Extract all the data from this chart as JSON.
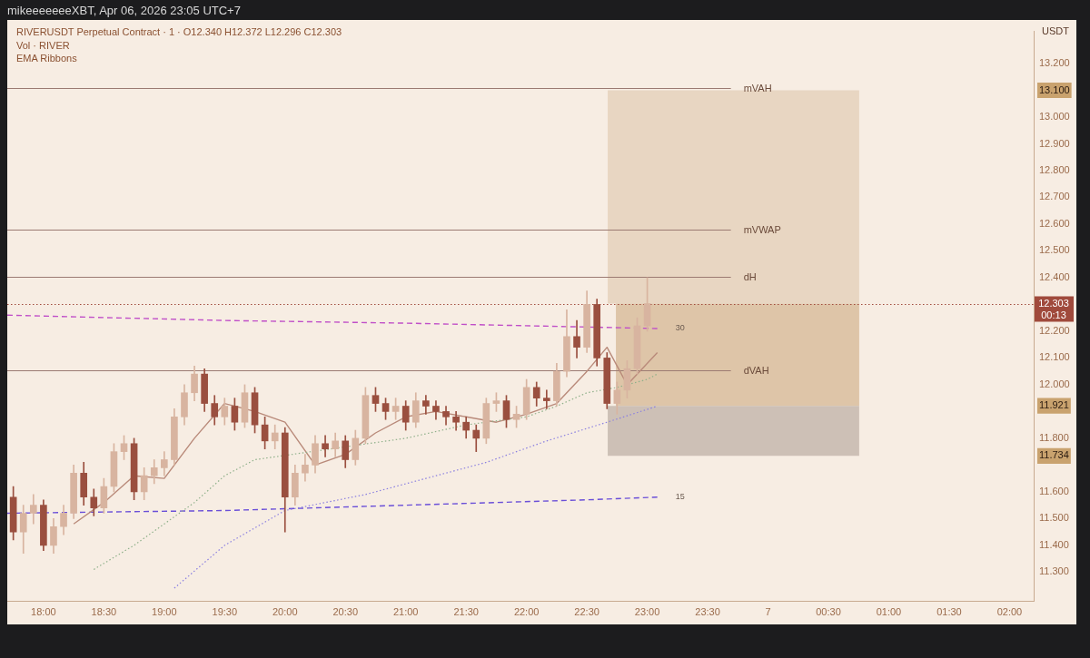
{
  "chart_data": {
    "type": "candlestick",
    "title": "RIVERUSDT Perpetual Contract · 1 · O12.340 H12.372 L12.296 C12.303",
    "subtitle": "mikeeeeeeeXBT, Apr 06, 2026 23:05 UTC+7",
    "ylabel": "USDT",
    "annotations": [
      "Vol · RIVER",
      "EMA Ribbons"
    ],
    "xlim": [
      "2026-04-06T17:42",
      "2026-04-07T02:12"
    ],
    "xticks": [
      {
        "value": "2026-04-06T18:00",
        "label": "18:00"
      },
      {
        "value": "2026-04-06T18:30",
        "label": "18:30"
      },
      {
        "value": "2026-04-06T19:00",
        "label": "19:00"
      },
      {
        "value": "2026-04-06T19:30",
        "label": "19:30"
      },
      {
        "value": "2026-04-06T20:00",
        "label": "20:00"
      },
      {
        "value": "2026-04-06T20:30",
        "label": "20:30"
      },
      {
        "value": "2026-04-06T21:00",
        "label": "21:00"
      },
      {
        "value": "2026-04-06T21:30",
        "label": "21:30"
      },
      {
        "value": "2026-04-06T22:00",
        "label": "22:00"
      },
      {
        "value": "2026-04-06T22:30",
        "label": "22:30"
      },
      {
        "value": "2026-04-06T23:00",
        "label": "23:00"
      },
      {
        "value": "2026-04-06T23:30",
        "label": "23:30"
      },
      {
        "value": "2026-04-07T00:00",
        "label": "7"
      },
      {
        "value": "2026-04-07T00:30",
        "label": "00:30"
      },
      {
        "value": "2026-04-07T01:00",
        "label": "01:00"
      },
      {
        "value": "2026-04-07T01:30",
        "label": "01:30"
      },
      {
        "value": "2026-04-07T02:00",
        "label": "02:00"
      }
    ],
    "ylim": [
      11.19,
      13.32
    ],
    "yticks": [
      {
        "value": 11.3,
        "label": "11.300"
      },
      {
        "value": 11.4,
        "label": "11.400"
      },
      {
        "value": 11.5,
        "label": "11.500"
      },
      {
        "value": 11.6,
        "label": "11.600"
      },
      {
        "value": 11.734,
        "label": "11.734"
      },
      {
        "value": 11.8,
        "label": "11.800"
      },
      {
        "value": 11.921,
        "label": "11.921"
      },
      {
        "value": 12.0,
        "label": "12.000"
      },
      {
        "value": 12.1,
        "label": "12.100"
      },
      {
        "value": 12.2,
        "label": "12.200"
      },
      {
        "value": 12.3,
        "label": null
      },
      {
        "value": 12.4,
        "label": "12.400"
      },
      {
        "value": 12.5,
        "label": "12.500"
      },
      {
        "value": 12.6,
        "label": "12.600"
      },
      {
        "value": 12.7,
        "label": "12.700"
      },
      {
        "value": 12.8,
        "label": "12.800"
      },
      {
        "value": 12.9,
        "label": "12.900"
      },
      {
        "value": 13.0,
        "label": "13.000"
      },
      {
        "value": 13.1,
        "label": "13.100"
      },
      {
        "value": 13.2,
        "label": "13.200"
      }
    ],
    "grid": false,
    "legend": false,
    "marker": "none",
    "ref_lines": [
      {
        "axis": "y",
        "value": 13.109,
        "label": "mVAH",
        "color": "#9b7a72",
        "line_style": "solid"
      },
      {
        "axis": "y",
        "value": 12.58,
        "label": "mVWAP",
        "color": "#9b7a72",
        "line_style": "solid"
      },
      {
        "axis": "y",
        "value": 12.403,
        "label": "dH",
        "color": "#9b7a72",
        "line_style": "solid"
      },
      {
        "axis": "y",
        "value": 12.055,
        "label": "dVAH",
        "color": "#9b7a72",
        "line_style": "solid"
      },
      {
        "axis": "y",
        "value": 12.303,
        "label": "12.303 00:13",
        "color": "#a04a3c",
        "line_style": "dotted"
      }
    ],
    "bands": [
      {
        "axis": "y",
        "from": 13.1,
        "to": 12.303,
        "color": "#e8d6c2"
      },
      {
        "axis": "y",
        "from": 11.921,
        "to": 12.303,
        "color": "#dec5a8"
      },
      {
        "axis": "y",
        "from": 11.734,
        "to": 11.921,
        "color": "#cdc0b6"
      }
    ],
    "series": [
      {
        "type": "line",
        "line_style": "dotted",
        "color": "#8fb08a",
        "x": [
          "2026-04-06T18:25",
          "2026-04-06T18:45",
          "2026-04-06T19:00",
          "2026-04-06T19:15",
          "2026-04-06T19:30",
          "2026-04-06T19:45",
          "2026-04-06T21:00",
          "2026-04-06T21:30",
          "2026-04-06T22:00",
          "2026-04-06T22:15",
          "2026-04-06T22:30",
          "2026-04-06T22:45",
          "2026-04-06T23:00",
          "2026-04-06T23:05"
        ],
        "values": [
          11.31,
          11.4,
          11.48,
          11.56,
          11.66,
          11.72,
          11.8,
          11.85,
          11.88,
          11.92,
          11.97,
          11.99,
          12.02,
          12.04
        ]
      },
      {
        "type": "line",
        "line_style": "dotted",
        "color": "#8a7fe0",
        "x": [
          "2026-04-06T19:05",
          "2026-04-06T19:30",
          "2026-04-06T20:00",
          "2026-04-06T20:40",
          "2026-04-06T21:15",
          "2026-04-06T21:40",
          "2026-04-06T22:10",
          "2026-04-06T22:40",
          "2026-04-06T23:05"
        ],
        "values": [
          11.24,
          11.4,
          11.53,
          11.59,
          11.66,
          11.71,
          11.79,
          11.86,
          11.92
        ]
      },
      {
        "type": "line",
        "line_style": "solid",
        "color": "#b98a7a",
        "x": [
          "2026-04-06T18:15",
          "2026-04-06T18:30",
          "2026-04-06T18:45",
          "2026-04-06T19:00",
          "2026-04-06T19:15",
          "2026-04-06T19:30",
          "2026-04-06T19:45",
          "2026-04-06T20:00",
          "2026-04-06T20:15",
          "2026-04-06T20:30",
          "2026-04-06T20:45",
          "2026-04-06T21:00",
          "2026-04-06T21:15",
          "2026-04-06T21:30",
          "2026-04-06T21:45",
          "2026-04-06T22:00",
          "2026-04-06T22:15",
          "2026-04-06T22:30",
          "2026-04-06T22:40",
          "2026-04-06T22:50",
          "2026-04-06T23:05"
        ],
        "values": [
          11.48,
          11.56,
          11.66,
          11.65,
          11.8,
          11.93,
          11.9,
          11.86,
          11.7,
          11.74,
          11.82,
          11.88,
          11.9,
          11.88,
          11.86,
          11.89,
          11.93,
          12.05,
          12.14,
          12.0,
          12.12
        ]
      },
      {
        "type": "line",
        "name": "30",
        "line_style": "dashed",
        "color": "#c04fc8",
        "x": [
          "2026-04-06T17:42",
          "2026-04-06T19:30",
          "2026-04-06T21:00",
          "2026-04-06T23:05"
        ],
        "values": [
          12.26,
          12.24,
          12.23,
          12.21
        ]
      },
      {
        "type": "line",
        "name": "15",
        "line_style": "dashed",
        "color": "#6a4fd8",
        "x": [
          "2026-04-06T17:42",
          "2026-04-06T19:30",
          "2026-04-06T21:00",
          "2026-04-06T22:30",
          "2026-04-06T23:05"
        ],
        "values": [
          11.52,
          11.53,
          11.55,
          11.57,
          11.58
        ]
      },
      {
        "x": [
          "2026-04-06T17:45",
          "2026-04-06T17:50",
          "2026-04-06T17:55",
          "2026-04-06T18:00",
          "2026-04-06T18:05",
          "2026-04-06T18:10",
          "2026-04-06T18:15",
          "2026-04-06T18:20",
          "2026-04-06T18:25",
          "2026-04-06T18:30",
          "2026-04-06T18:35",
          "2026-04-06T18:40",
          "2026-04-06T18:45",
          "2026-04-06T18:50",
          "2026-04-06T18:55",
          "2026-04-06T19:00",
          "2026-04-06T19:05",
          "2026-04-06T19:10",
          "2026-04-06T19:15",
          "2026-04-06T19:20",
          "2026-04-06T19:25",
          "2026-04-06T19:30",
          "2026-04-06T19:35",
          "2026-04-06T19:40",
          "2026-04-06T19:45",
          "2026-04-06T19:50",
          "2026-04-06T19:55",
          "2026-04-06T20:00",
          "2026-04-06T20:05",
          "2026-04-06T20:10",
          "2026-04-06T20:15",
          "2026-04-06T20:20",
          "2026-04-06T20:25",
          "2026-04-06T20:30",
          "2026-04-06T20:35",
          "2026-04-06T20:40",
          "2026-04-06T20:45",
          "2026-04-06T20:50",
          "2026-04-06T20:55",
          "2026-04-06T21:00",
          "2026-04-06T21:05",
          "2026-04-06T21:10",
          "2026-04-06T21:15",
          "2026-04-06T21:20",
          "2026-04-06T21:25",
          "2026-04-06T21:30",
          "2026-04-06T21:35",
          "2026-04-06T21:40",
          "2026-04-06T21:45",
          "2026-04-06T21:50",
          "2026-04-06T21:55",
          "2026-04-06T22:00",
          "2026-04-06T22:05",
          "2026-04-06T22:10",
          "2026-04-06T22:15",
          "2026-04-06T22:20",
          "2026-04-06T22:25",
          "2026-04-06T22:30",
          "2026-04-06T22:35",
          "2026-04-06T22:40",
          "2026-04-06T22:45",
          "2026-04-06T22:50",
          "2026-04-06T22:55",
          "2026-04-06T23:00"
        ],
        "ohlc": [
          [
            11.58,
            11.62,
            11.42,
            11.45
          ],
          [
            11.45,
            11.55,
            11.37,
            11.52
          ],
          [
            11.52,
            11.59,
            11.48,
            11.55
          ],
          [
            11.55,
            11.57,
            11.38,
            11.4
          ],
          [
            11.4,
            11.5,
            11.37,
            11.47
          ],
          [
            11.47,
            11.55,
            11.44,
            11.52
          ],
          [
            11.52,
            11.7,
            11.5,
            11.67
          ],
          [
            11.67,
            11.71,
            11.55,
            11.58
          ],
          [
            11.58,
            11.61,
            11.51,
            11.54
          ],
          [
            11.54,
            11.65,
            11.52,
            11.62
          ],
          [
            11.62,
            11.78,
            11.6,
            11.75
          ],
          [
            11.75,
            11.81,
            11.72,
            11.78
          ],
          [
            11.78,
            11.8,
            11.57,
            11.6
          ],
          [
            11.6,
            11.69,
            11.57,
            11.66
          ],
          [
            11.66,
            11.72,
            11.63,
            11.69
          ],
          [
            11.69,
            11.75,
            11.66,
            11.72
          ],
          [
            11.72,
            11.91,
            11.7,
            11.88
          ],
          [
            11.88,
            12.0,
            11.85,
            11.97
          ],
          [
            11.97,
            12.07,
            11.94,
            12.04
          ],
          [
            12.04,
            12.06,
            11.9,
            11.93
          ],
          [
            11.93,
            11.96,
            11.85,
            11.88
          ],
          [
            11.88,
            11.95,
            11.85,
            11.92
          ],
          [
            11.92,
            11.95,
            11.83,
            11.86
          ],
          [
            11.86,
            12.0,
            11.84,
            11.97
          ],
          [
            11.97,
            11.99,
            11.82,
            11.85
          ],
          [
            11.85,
            11.88,
            11.76,
            11.79
          ],
          [
            11.79,
            11.85,
            11.76,
            11.82
          ],
          [
            11.82,
            11.84,
            11.45,
            11.58
          ],
          [
            11.58,
            11.7,
            11.55,
            11.67
          ],
          [
            11.67,
            11.74,
            11.64,
            11.7
          ],
          [
            11.7,
            11.81,
            11.67,
            11.78
          ],
          [
            11.78,
            11.81,
            11.73,
            11.76
          ],
          [
            11.76,
            11.82,
            11.73,
            11.79
          ],
          [
            11.79,
            11.81,
            11.69,
            11.72
          ],
          [
            11.72,
            11.83,
            11.7,
            11.8
          ],
          [
            11.8,
            11.99,
            11.78,
            11.96
          ],
          [
            11.96,
            11.99,
            11.9,
            11.93
          ],
          [
            11.93,
            11.95,
            11.87,
            11.9
          ],
          [
            11.9,
            11.95,
            11.87,
            11.92
          ],
          [
            11.92,
            11.94,
            11.83,
            11.86
          ],
          [
            11.86,
            11.97,
            11.84,
            11.94
          ],
          [
            11.94,
            11.96,
            11.89,
            11.92
          ],
          [
            11.92,
            11.94,
            11.87,
            11.9
          ],
          [
            11.9,
            11.92,
            11.85,
            11.88
          ],
          [
            11.88,
            11.9,
            11.83,
            11.86
          ],
          [
            11.86,
            11.88,
            11.8,
            11.83
          ],
          [
            11.83,
            11.85,
            11.75,
            11.8
          ],
          [
            11.8,
            11.95,
            11.78,
            11.93
          ],
          [
            11.93,
            11.97,
            11.9,
            11.94
          ],
          [
            11.94,
            11.96,
            11.84,
            11.87
          ],
          [
            11.87,
            11.92,
            11.84,
            11.89
          ],
          [
            11.89,
            12.02,
            11.87,
            11.99
          ],
          [
            11.99,
            12.01,
            11.92,
            11.95
          ],
          [
            11.95,
            11.98,
            11.91,
            11.94
          ],
          [
            11.94,
            12.08,
            11.92,
            12.05
          ],
          [
            12.05,
            12.28,
            12.03,
            12.18
          ],
          [
            12.18,
            12.24,
            12.1,
            12.14
          ],
          [
            12.14,
            12.35,
            12.12,
            12.3
          ],
          [
            12.3,
            12.32,
            12.07,
            12.1
          ],
          [
            12.1,
            12.12,
            11.91,
            11.93
          ],
          [
            11.93,
            12.01,
            11.89,
            11.98
          ],
          [
            11.98,
            12.09,
            11.95,
            12.06
          ],
          [
            12.06,
            12.25,
            12.04,
            12.22
          ],
          [
            12.22,
            12.4,
            12.2,
            12.303
          ]
        ],
        "colors": [
          "#9a4f3f",
          "#d8b4a0",
          "#d8b4a0",
          "#9a4f3f",
          "#d8b4a0",
          "#d8b4a0",
          "#d8b4a0",
          "#9a4f3f",
          "#9a4f3f",
          "#d8b4a0",
          "#d8b4a0",
          "#d8b4a0",
          "#9a4f3f",
          "#d8b4a0",
          "#d8b4a0",
          "#d8b4a0",
          "#d8b4a0",
          "#d8b4a0",
          "#d8b4a0",
          "#9a4f3f",
          "#9a4f3f",
          "#d8b4a0",
          "#9a4f3f",
          "#d8b4a0",
          "#9a4f3f",
          "#9a4f3f",
          "#d8b4a0",
          "#9a4f3f",
          "#d8b4a0",
          "#d8b4a0",
          "#d8b4a0",
          "#9a4f3f",
          "#d8b4a0",
          "#9a4f3f",
          "#d8b4a0",
          "#d8b4a0",
          "#9a4f3f",
          "#9a4f3f",
          "#d8b4a0",
          "#9a4f3f",
          "#d8b4a0",
          "#9a4f3f",
          "#9a4f3f",
          "#9a4f3f",
          "#9a4f3f",
          "#9a4f3f",
          "#9a4f3f",
          "#d8b4a0",
          "#d8b4a0",
          "#9a4f3f",
          "#d8b4a0",
          "#d8b4a0",
          "#9a4f3f",
          "#9a4f3f",
          "#d8b4a0",
          "#d8b4a0",
          "#9a4f3f",
          "#d8b4a0",
          "#9a4f3f",
          "#9a4f3f",
          "#d8b4a0",
          "#d8b4a0",
          "#d8b4a0",
          "#d8b4a0"
        ]
      }
    ]
  }
}
